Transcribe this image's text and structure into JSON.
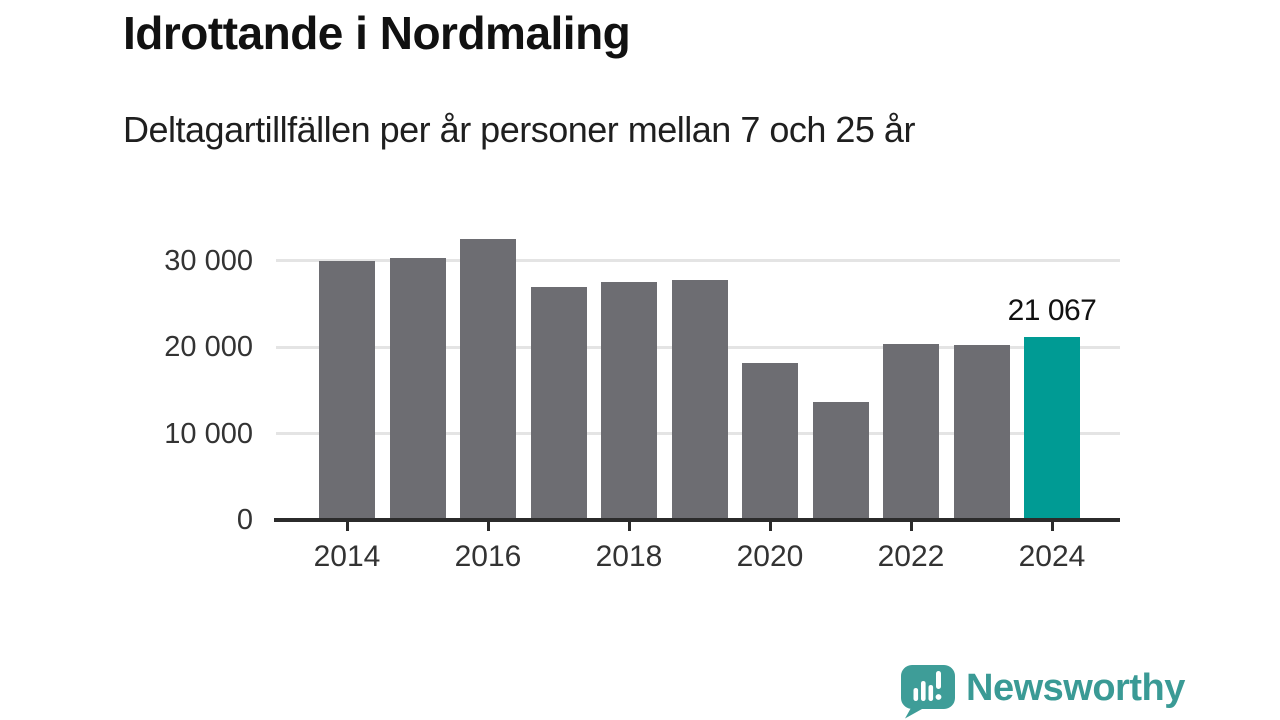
{
  "header": {
    "title": "Idrottande i Nordmaling",
    "subtitle": "Deltagartillfällen per år personer mellan 7 och 25 år"
  },
  "chart_data": {
    "type": "bar",
    "title": "Idrottande i Nordmaling",
    "subtitle": "Deltagartillfällen per år personer mellan 7 och 25 år",
    "categories": [
      "2014",
      "2015",
      "2016",
      "2017",
      "2018",
      "2019",
      "2020",
      "2021",
      "2022",
      "2023",
      "2024"
    ],
    "values": [
      29800,
      30200,
      32400,
      26800,
      27400,
      27600,
      18000,
      13550,
      20200,
      20150,
      21067
    ],
    "highlight_index": 10,
    "annotations": [
      {
        "category": "2024",
        "label": "21 067"
      }
    ],
    "y_ticks": [
      {
        "value": 0,
        "label": "0"
      },
      {
        "value": 10000,
        "label": "10 000"
      },
      {
        "value": 20000,
        "label": "20 000"
      },
      {
        "value": 30000,
        "label": "30 000"
      }
    ],
    "x_tick_labels": [
      "2014",
      "2016",
      "2018",
      "2020",
      "2022",
      "2024"
    ],
    "ylim": [
      0,
      33500
    ],
    "grid": true,
    "legend": "none",
    "colors": {
      "bar": "#6d6d72",
      "highlight": "#009b94",
      "gridline": "#e4e4e4",
      "axis": "#2b2b2b",
      "tick_label": "#333333",
      "annotation": "#111111"
    }
  },
  "footer": {
    "brand": "Newsworthy",
    "logo_icon": "speech-bubble-bar-chart-icon",
    "brand_color": "#3a9a95",
    "logo_fill": "#3e9d98"
  }
}
